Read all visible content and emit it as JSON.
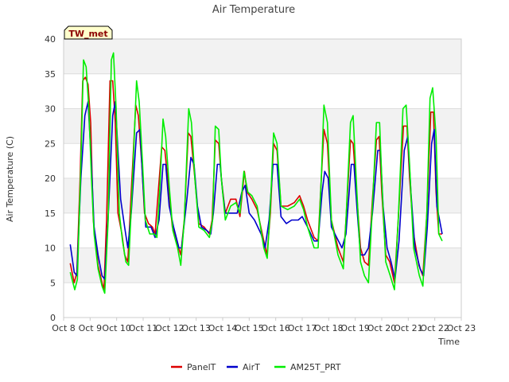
{
  "chart_data": {
    "type": "line",
    "title": "Air Temperature",
    "xlabel": "Time",
    "ylabel": "Air Temperature (C)",
    "badge": "TW_met",
    "ylim": [
      0,
      40
    ],
    "xlim": [
      8,
      23
    ],
    "grid": true,
    "legend_position": "bottom",
    "yticks": [
      "0",
      "5",
      "10",
      "15",
      "20",
      "25",
      "30",
      "35",
      "40"
    ],
    "xticks": [
      "Oct 8",
      "Oct 9",
      "Oct 10",
      "Oct 11",
      "Oct 12",
      "Oct 13",
      "Oct 14",
      "Oct 15",
      "Oct 16",
      "Oct 17",
      "Oct 18",
      "Oct 19",
      "Oct 20",
      "Oct 21",
      "Oct 22",
      "Oct 23"
    ],
    "series": [
      {
        "name": "PanelT",
        "color": "#dd0000",
        "points": [
          [
            8.25,
            7.8
          ],
          [
            8.4,
            5.0
          ],
          [
            8.5,
            6.5
          ],
          [
            8.62,
            20.0
          ],
          [
            8.72,
            34.0
          ],
          [
            8.82,
            34.5
          ],
          [
            8.92,
            33.5
          ],
          [
            9.02,
            28.0
          ],
          [
            9.12,
            14.0
          ],
          [
            9.3,
            7.5
          ],
          [
            9.45,
            5.0
          ],
          [
            9.52,
            4.0
          ],
          [
            9.62,
            14.0
          ],
          [
            9.75,
            34.0
          ],
          [
            9.85,
            34.0
          ],
          [
            9.95,
            28.0
          ],
          [
            10.05,
            15.0
          ],
          [
            10.2,
            12.0
          ],
          [
            10.3,
            9.0
          ],
          [
            10.42,
            8.0
          ],
          [
            10.55,
            18.0
          ],
          [
            10.72,
            30.5
          ],
          [
            10.82,
            29.0
          ],
          [
            10.95,
            22.0
          ],
          [
            11.05,
            15.0
          ],
          [
            11.2,
            13.5
          ],
          [
            11.35,
            13.0
          ],
          [
            11.45,
            12.0
          ],
          [
            11.55,
            17.0
          ],
          [
            11.7,
            24.5
          ],
          [
            11.82,
            24.0
          ],
          [
            11.95,
            19.0
          ],
          [
            12.1,
            13.0
          ],
          [
            12.3,
            10.5
          ],
          [
            12.42,
            9.0
          ],
          [
            12.55,
            14.0
          ],
          [
            12.7,
            26.5
          ],
          [
            12.8,
            26.0
          ],
          [
            12.95,
            20.0
          ],
          [
            13.1,
            13.5
          ],
          [
            13.3,
            13.0
          ],
          [
            13.5,
            12.0
          ],
          [
            13.6,
            14.0
          ],
          [
            13.72,
            25.5
          ],
          [
            13.85,
            25.0
          ],
          [
            13.95,
            20.0
          ],
          [
            14.1,
            15.0
          ],
          [
            14.3,
            17.0
          ],
          [
            14.5,
            17.0
          ],
          [
            14.65,
            14.5
          ],
          [
            14.82,
            21.0
          ],
          [
            14.92,
            18.0
          ],
          [
            15.1,
            17.0
          ],
          [
            15.3,
            15.5
          ],
          [
            15.55,
            11.0
          ],
          [
            15.67,
            9.0
          ],
          [
            15.8,
            15.0
          ],
          [
            15.92,
            25.0
          ],
          [
            16.05,
            24.0
          ],
          [
            16.2,
            16.0
          ],
          [
            16.45,
            16.0
          ],
          [
            16.7,
            16.5
          ],
          [
            16.9,
            17.5
          ],
          [
            17.05,
            16.0
          ],
          [
            17.2,
            14.0
          ],
          [
            17.45,
            11.5
          ],
          [
            17.6,
            11.0
          ],
          [
            17.72,
            20.0
          ],
          [
            17.82,
            27.0
          ],
          [
            17.95,
            25.0
          ],
          [
            18.1,
            14.0
          ],
          [
            18.35,
            10.0
          ],
          [
            18.55,
            8.0
          ],
          [
            18.65,
            14.0
          ],
          [
            18.82,
            25.5
          ],
          [
            18.92,
            25.0
          ],
          [
            19.05,
            18.0
          ],
          [
            19.2,
            10.0
          ],
          [
            19.35,
            8.0
          ],
          [
            19.5,
            7.5
          ],
          [
            19.65,
            17.0
          ],
          [
            19.8,
            25.5
          ],
          [
            19.9,
            26.0
          ],
          [
            20.0,
            18.0
          ],
          [
            20.15,
            9.0
          ],
          [
            20.3,
            8.0
          ],
          [
            20.48,
            5.0
          ],
          [
            20.62,
            14.0
          ],
          [
            20.82,
            27.5
          ],
          [
            20.95,
            27.5
          ],
          [
            21.05,
            20.0
          ],
          [
            21.2,
            12.0
          ],
          [
            21.4,
            7.5
          ],
          [
            21.55,
            6.0
          ],
          [
            21.7,
            15.0
          ],
          [
            21.85,
            29.5
          ],
          [
            21.95,
            29.5
          ],
          [
            22.05,
            18.0
          ],
          [
            22.15,
            12.0
          ],
          [
            22.28,
            12.0
          ]
        ]
      },
      {
        "name": "AirT",
        "color": "#0000cc",
        "points": [
          [
            8.25,
            10.5
          ],
          [
            8.4,
            6.5
          ],
          [
            8.5,
            6.0
          ],
          [
            8.65,
            20.0
          ],
          [
            8.8,
            29.0
          ],
          [
            8.92,
            31.0
          ],
          [
            9.05,
            22.0
          ],
          [
            9.15,
            13.0
          ],
          [
            9.3,
            9.0
          ],
          [
            9.45,
            6.0
          ],
          [
            9.55,
            5.5
          ],
          [
            9.7,
            16.0
          ],
          [
            9.85,
            29.0
          ],
          [
            9.95,
            31.0
          ],
          [
            10.05,
            24.0
          ],
          [
            10.15,
            17.0
          ],
          [
            10.3,
            13.0
          ],
          [
            10.42,
            10.0
          ],
          [
            10.55,
            15.0
          ],
          [
            10.75,
            26.5
          ],
          [
            10.88,
            27.0
          ],
          [
            10.98,
            20.0
          ],
          [
            11.1,
            13.0
          ],
          [
            11.3,
            13.0
          ],
          [
            11.45,
            11.5
          ],
          [
            11.6,
            14.0
          ],
          [
            11.75,
            22.0
          ],
          [
            11.85,
            22.0
          ],
          [
            11.98,
            16.0
          ],
          [
            12.15,
            13.0
          ],
          [
            12.35,
            10.0
          ],
          [
            12.45,
            10.0
          ],
          [
            12.65,
            17.0
          ],
          [
            12.8,
            23.0
          ],
          [
            12.92,
            22.0
          ],
          [
            13.05,
            16.0
          ],
          [
            13.2,
            13.0
          ],
          [
            13.4,
            12.5
          ],
          [
            13.55,
            12.0
          ],
          [
            13.65,
            15.0
          ],
          [
            13.8,
            22.0
          ],
          [
            13.9,
            22.0
          ],
          [
            14.0,
            18.0
          ],
          [
            14.1,
            15.0
          ],
          [
            14.3,
            15.0
          ],
          [
            14.55,
            15.0
          ],
          [
            14.72,
            18.0
          ],
          [
            14.85,
            19.0
          ],
          [
            15.0,
            15.0
          ],
          [
            15.2,
            14.0
          ],
          [
            15.45,
            12.0
          ],
          [
            15.6,
            10.0
          ],
          [
            15.75,
            14.0
          ],
          [
            15.9,
            22.0
          ],
          [
            16.05,
            22.0
          ],
          [
            16.2,
            14.5
          ],
          [
            16.4,
            13.5
          ],
          [
            16.6,
            14.0
          ],
          [
            16.85,
            14.0
          ],
          [
            17.0,
            14.5
          ],
          [
            17.2,
            13.0
          ],
          [
            17.45,
            11.0
          ],
          [
            17.6,
            11.0
          ],
          [
            17.75,
            18.0
          ],
          [
            17.85,
            21.0
          ],
          [
            17.98,
            20.0
          ],
          [
            18.1,
            13.0
          ],
          [
            18.3,
            11.5
          ],
          [
            18.5,
            10.0
          ],
          [
            18.65,
            12.0
          ],
          [
            18.85,
            22.0
          ],
          [
            18.95,
            22.0
          ],
          [
            19.08,
            15.0
          ],
          [
            19.2,
            9.0
          ],
          [
            19.35,
            9.0
          ],
          [
            19.5,
            10.0
          ],
          [
            19.65,
            15.0
          ],
          [
            19.85,
            24.0
          ],
          [
            19.95,
            24.0
          ],
          [
            20.05,
            16.0
          ],
          [
            20.2,
            10.0
          ],
          [
            20.35,
            8.0
          ],
          [
            20.5,
            5.5
          ],
          [
            20.65,
            11.0
          ],
          [
            20.85,
            24.0
          ],
          [
            20.98,
            26.0
          ],
          [
            21.1,
            18.0
          ],
          [
            21.25,
            10.0
          ],
          [
            21.45,
            7.0
          ],
          [
            21.58,
            6.0
          ],
          [
            21.72,
            13.0
          ],
          [
            21.88,
            25.0
          ],
          [
            21.98,
            27.0
          ],
          [
            22.08,
            16.0
          ],
          [
            22.18,
            14.0
          ],
          [
            22.28,
            12.0
          ]
        ]
      },
      {
        "name": "AM25T_PRT",
        "color": "#00ee00",
        "points": [
          [
            8.25,
            6.5
          ],
          [
            8.42,
            4.0
          ],
          [
            8.52,
            5.5
          ],
          [
            8.65,
            22.0
          ],
          [
            8.75,
            37.0
          ],
          [
            8.85,
            36.0
          ],
          [
            8.95,
            30.0
          ],
          [
            9.05,
            20.0
          ],
          [
            9.15,
            12.0
          ],
          [
            9.3,
            7.0
          ],
          [
            9.45,
            4.5
          ],
          [
            9.55,
            3.5
          ],
          [
            9.68,
            14.0
          ],
          [
            9.8,
            37.0
          ],
          [
            9.88,
            38.0
          ],
          [
            9.98,
            30.0
          ],
          [
            10.1,
            15.0
          ],
          [
            10.22,
            11.0
          ],
          [
            10.35,
            8.0
          ],
          [
            10.45,
            7.5
          ],
          [
            10.58,
            18.0
          ],
          [
            10.75,
            34.0
          ],
          [
            10.85,
            31.0
          ],
          [
            10.98,
            22.0
          ],
          [
            11.08,
            14.0
          ],
          [
            11.25,
            12.0
          ],
          [
            11.42,
            12.0
          ],
          [
            11.52,
            11.5
          ],
          [
            11.62,
            18.0
          ],
          [
            11.75,
            28.5
          ],
          [
            11.85,
            26.0
          ],
          [
            11.98,
            19.0
          ],
          [
            12.12,
            12.5
          ],
          [
            12.3,
            10.0
          ],
          [
            12.42,
            7.5
          ],
          [
            12.55,
            14.0
          ],
          [
            12.72,
            30.0
          ],
          [
            12.82,
            28.0
          ],
          [
            12.95,
            20.0
          ],
          [
            13.1,
            13.0
          ],
          [
            13.3,
            12.5
          ],
          [
            13.5,
            11.5
          ],
          [
            13.62,
            14.0
          ],
          [
            13.72,
            27.5
          ],
          [
            13.85,
            27.0
          ],
          [
            13.95,
            20.0
          ],
          [
            14.1,
            14.0
          ],
          [
            14.3,
            16.0
          ],
          [
            14.5,
            16.5
          ],
          [
            14.65,
            15.0
          ],
          [
            14.8,
            21.0
          ],
          [
            14.95,
            18.0
          ],
          [
            15.1,
            17.5
          ],
          [
            15.3,
            16.0
          ],
          [
            15.55,
            10.0
          ],
          [
            15.68,
            8.5
          ],
          [
            15.8,
            16.0
          ],
          [
            15.92,
            26.5
          ],
          [
            16.05,
            25.0
          ],
          [
            16.2,
            16.0
          ],
          [
            16.45,
            15.5
          ],
          [
            16.7,
            16.0
          ],
          [
            16.9,
            17.0
          ],
          [
            17.05,
            15.5
          ],
          [
            17.2,
            13.0
          ],
          [
            17.45,
            10.0
          ],
          [
            17.6,
            10.0
          ],
          [
            17.72,
            20.0
          ],
          [
            17.82,
            30.5
          ],
          [
            17.95,
            28.0
          ],
          [
            18.1,
            14.0
          ],
          [
            18.35,
            9.0
          ],
          [
            18.55,
            7.0
          ],
          [
            18.65,
            14.0
          ],
          [
            18.82,
            28.0
          ],
          [
            18.92,
            29.0
          ],
          [
            19.05,
            19.0
          ],
          [
            19.2,
            8.0
          ],
          [
            19.35,
            6.0
          ],
          [
            19.5,
            5.0
          ],
          [
            19.65,
            16.0
          ],
          [
            19.8,
            28.0
          ],
          [
            19.92,
            28.0
          ],
          [
            20.02,
            18.0
          ],
          [
            20.15,
            8.0
          ],
          [
            20.32,
            6.0
          ],
          [
            20.48,
            4.0
          ],
          [
            20.62,
            14.0
          ],
          [
            20.8,
            30.0
          ],
          [
            20.92,
            30.5
          ],
          [
            21.05,
            22.0
          ],
          [
            21.2,
            10.0
          ],
          [
            21.42,
            6.0
          ],
          [
            21.55,
            4.5
          ],
          [
            21.7,
            15.0
          ],
          [
            21.82,
            31.5
          ],
          [
            21.92,
            33.0
          ],
          [
            22.05,
            26.0
          ],
          [
            22.15,
            12.0
          ],
          [
            22.28,
            11.0
          ]
        ]
      }
    ]
  }
}
